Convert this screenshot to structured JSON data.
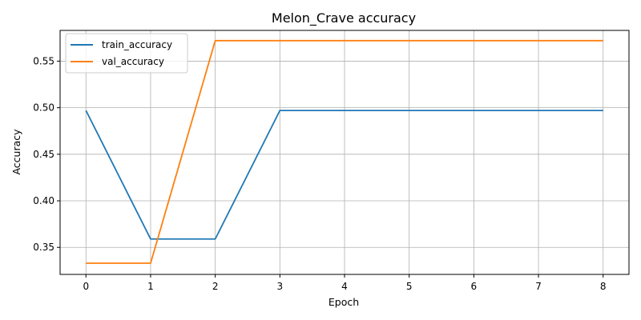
{
  "chart_data": {
    "type": "line",
    "title": "Melon_Crave accuracy",
    "xlabel": "Epoch",
    "ylabel": "Accuracy",
    "x": [
      0,
      1,
      2,
      3,
      4,
      5,
      6,
      7,
      8
    ],
    "xticks": [
      "0",
      "1",
      "2",
      "3",
      "4",
      "5",
      "6",
      "7",
      "8"
    ],
    "yticks": [
      "0.35",
      "0.40",
      "0.45",
      "0.50",
      "0.55"
    ],
    "ytick_values": [
      0.35,
      0.4,
      0.45,
      0.5,
      0.55
    ],
    "xlim": [
      -0.4,
      8.4
    ],
    "ylim": [
      0.321,
      0.583
    ],
    "grid": true,
    "legend_position": "top-left",
    "series": [
      {
        "name": "train_accuracy",
        "color": "#1f77b4",
        "values": [
          0.497,
          0.359,
          0.359,
          0.497,
          0.497,
          0.497,
          0.497,
          0.497,
          0.497
        ]
      },
      {
        "name": "val_accuracy",
        "color": "#ff7f0e",
        "values": [
          0.333,
          0.333,
          0.572,
          0.572,
          0.572,
          0.572,
          0.572,
          0.572,
          0.572
        ]
      }
    ]
  }
}
